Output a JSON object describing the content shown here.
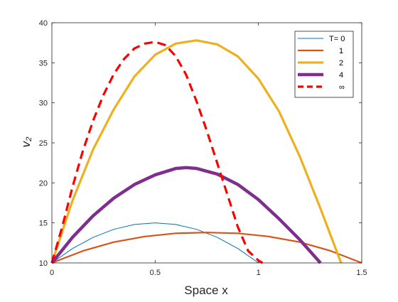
{
  "chart_data": {
    "type": "line",
    "xlabel": "Space x",
    "ylabel": "v₂",
    "xlim": [
      0,
      1.5
    ],
    "ylim": [
      10,
      40
    ],
    "xticks": [
      "0",
      "0.5",
      "1",
      "1.5"
    ],
    "yticks": [
      "10",
      "15",
      "20",
      "25",
      "30",
      "35",
      "40"
    ],
    "grid": false,
    "legend_position": "top-right",
    "series": [
      {
        "name": "T= 0",
        "color": "#0072BD",
        "line_style": "solid",
        "x": [
          0,
          0.1,
          0.2,
          0.3,
          0.4,
          0.5,
          0.6,
          0.7,
          0.8,
          0.9,
          1.0
        ],
        "y": [
          10.0,
          11.8,
          13.2,
          14.2,
          14.8,
          15.0,
          14.8,
          14.2,
          13.2,
          11.8,
          10.0
        ]
      },
      {
        "name": "1",
        "color": "#D95319",
        "line_style": "solid",
        "x": [
          0,
          0.15,
          0.3,
          0.45,
          0.6,
          0.75,
          0.9,
          1.05,
          1.2,
          1.35,
          1.5
        ],
        "y": [
          10.0,
          11.5,
          12.6,
          13.3,
          13.7,
          13.8,
          13.7,
          13.3,
          12.6,
          11.5,
          10.0
        ]
      },
      {
        "name": "2",
        "color": "#EDB120",
        "line_style": "solid",
        "x": [
          0,
          0.1,
          0.2,
          0.3,
          0.4,
          0.5,
          0.6,
          0.7,
          0.8,
          0.9,
          1.0,
          1.1,
          1.2,
          1.3,
          1.4
        ],
        "y": [
          10.0,
          17.8,
          24.2,
          29.2,
          33.3,
          36.0,
          37.4,
          37.8,
          37.3,
          35.8,
          33.0,
          28.9,
          23.3,
          16.8,
          10.0
        ]
      },
      {
        "name": "4",
        "color": "#7E2F8E",
        "line_style": "solid",
        "x": [
          0,
          0.1,
          0.2,
          0.3,
          0.4,
          0.5,
          0.6,
          0.65,
          0.7,
          0.8,
          0.9,
          1.0,
          1.1,
          1.2,
          1.3
        ],
        "y": [
          10.0,
          13.2,
          15.9,
          18.1,
          19.8,
          21.0,
          21.8,
          21.9,
          21.8,
          21.1,
          19.8,
          17.9,
          15.5,
          12.9,
          10.0
        ]
      },
      {
        "name": "∞",
        "color": "#FF0000",
        "line_style": "dashed",
        "x": [
          0,
          0.05,
          0.1,
          0.15,
          0.2,
          0.25,
          0.3,
          0.35,
          0.4,
          0.45,
          0.5,
          0.55,
          0.6,
          0.65,
          0.7,
          0.75,
          0.8,
          0.85,
          0.9,
          0.95,
          1.0,
          1.02
        ],
        "y": [
          10.0,
          14.5,
          19.5,
          24.0,
          27.8,
          31.0,
          33.6,
          35.5,
          36.8,
          37.4,
          37.6,
          37.2,
          35.8,
          33.5,
          30.2,
          26.5,
          22.5,
          18.5,
          14.5,
          11.5,
          10.3,
          10.0
        ]
      }
    ]
  }
}
